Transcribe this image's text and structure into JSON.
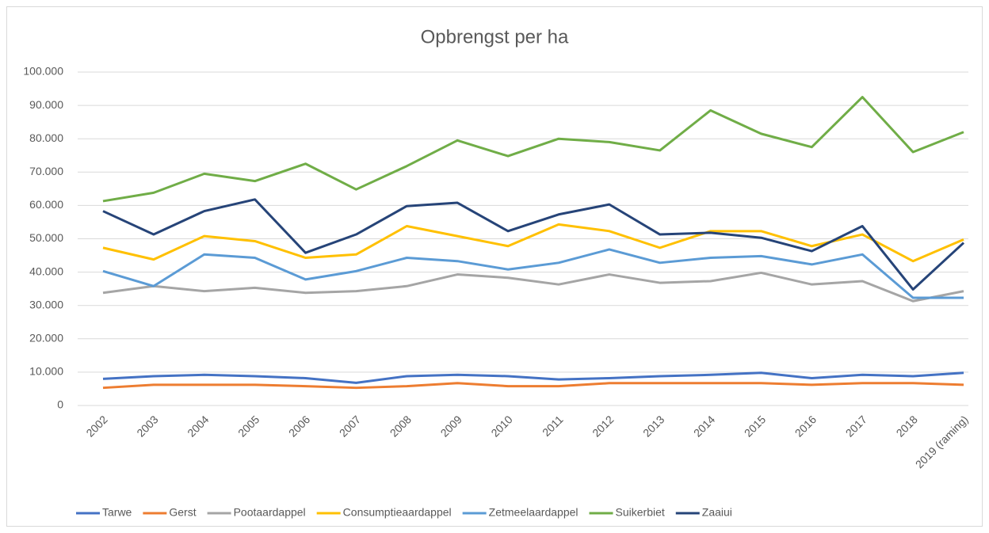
{
  "chart_data": {
    "type": "line",
    "title": "Opbrengst per ha",
    "categories": [
      "2002",
      "2003",
      "2004",
      "2005",
      "2006",
      "2007",
      "2008",
      "2009",
      "2010",
      "2011",
      "2012",
      "2013",
      "2014",
      "2015",
      "2016",
      "2017",
      "2018",
      "2019 (raming)"
    ],
    "ylim": [
      0,
      100000
    ],
    "yticks": [
      0,
      {
        "value": 10000,
        "label": "10.000"
      },
      {
        "value": 20000,
        "label": "20.000"
      },
      {
        "value": 30000,
        "label": "30.000"
      },
      {
        "value": 40000,
        "label": "40.000"
      },
      {
        "value": 50000,
        "label": "50.000"
      },
      {
        "value": 60000,
        "label": "60.000"
      },
      {
        "value": 70000,
        "label": "70.000"
      },
      {
        "value": 80000,
        "label": "80.000"
      },
      {
        "value": 90000,
        "label": "90.000"
      },
      {
        "value": 100000,
        "label": "100.000"
      }
    ],
    "grid": true,
    "legend": "bottom",
    "series": [
      {
        "name": "Tarwe",
        "color": "#4472c4",
        "values": [
          8000,
          8800,
          9200,
          8800,
          8200,
          6800,
          8800,
          9200,
          8800,
          7800,
          8200,
          8800,
          9200,
          9800,
          8200,
          9200,
          8800,
          9800
        ]
      },
      {
        "name": "Gerst",
        "color": "#ed7d31",
        "values": [
          5300,
          6200,
          6200,
          6200,
          5800,
          5300,
          5800,
          6700,
          5800,
          5800,
          6700,
          6700,
          6700,
          6700,
          6200,
          6700,
          6700,
          6200
        ]
      },
      {
        "name": "Pootaardappel",
        "color": "#a5a5a5",
        "values": [
          33800,
          35800,
          34300,
          35300,
          33800,
          34300,
          35800,
          39300,
          38300,
          36300,
          39300,
          36800,
          37300,
          39800,
          36300,
          37300,
          31300,
          34300
        ]
      },
      {
        "name": "Consumptieaardappel",
        "color": "#ffc000",
        "values": [
          47300,
          43800,
          50800,
          49300,
          44300,
          45300,
          53800,
          50800,
          47800,
          54300,
          52300,
          47300,
          52300,
          52300,
          47800,
          51300,
          43300,
          49800
        ]
      },
      {
        "name": "Zetmeelaardappel",
        "color": "#5b9bd5",
        "values": [
          40300,
          35800,
          45300,
          44300,
          37800,
          40300,
          44300,
          43300,
          40800,
          42800,
          46800,
          42800,
          44300,
          44800,
          42300,
          45300,
          32300,
          32300
        ]
      },
      {
        "name": "Suikerbiet",
        "color": "#70ad47",
        "values": [
          61300,
          63800,
          69500,
          67300,
          72500,
          64800,
          71800,
          79500,
          74800,
          80000,
          79000,
          76500,
          88500,
          81500,
          77500,
          92500,
          76000,
          82000
        ]
      },
      {
        "name": "Zaaiui",
        "color": "#264478",
        "values": [
          58300,
          51300,
          58300,
          61800,
          45800,
          51300,
          59800,
          60800,
          52300,
          57300,
          60300,
          51300,
          51800,
          50300,
          46300,
          53800,
          34800,
          48800
        ]
      }
    ]
  }
}
